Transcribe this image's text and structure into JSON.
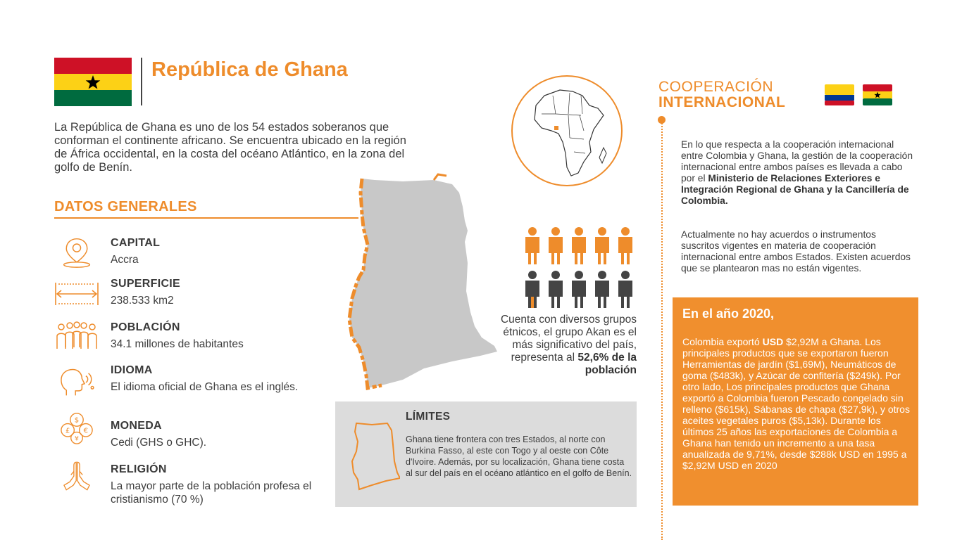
{
  "header": {
    "title": "República de Ghana",
    "intro": "La República de Ghana es uno de los 54 estados soberanos que conforman el continente africano. Se encuentra ubicado en la región de África occidental, en la costa del océano Atlántico, en la zona del golfo de Benín."
  },
  "datos": {
    "title": "DATOS GENERALES",
    "items": [
      {
        "icon": "location-pin-icon",
        "label": "CAPITAL",
        "value": "Accra"
      },
      {
        "icon": "ruler-icon",
        "label": "SUPERFICIE",
        "value": "238.533 km2"
      },
      {
        "icon": "people-group-icon",
        "label": "POBLACIÓN",
        "value": "34.1 millones de habitantes"
      },
      {
        "icon": "speaking-head-icon",
        "label": "IDIOMA",
        "value": "El idioma oficial de Ghana es el inglés."
      },
      {
        "icon": "currency-coins-icon",
        "label": "MONEDA",
        "value": "Cedi (GHS o GHC)."
      },
      {
        "icon": "praying-hands-icon",
        "label": "RELIGIÓN",
        "value": "La mayor parte de la población profesa el cristianismo (70 %)"
      }
    ]
  },
  "ethnic": {
    "text": "Cuenta con diversos grupos étnicos, el grupo Akan es el más significativo del país, representa al",
    "highlight": "52,6% de la población"
  },
  "limits": {
    "title": "LÍMITES",
    "text": "Ghana tiene frontera con tres Estados, al norte con Burkina Fasso, al este con Togo y al oeste con Côte d'Ivoire. Además, por su localización, Ghana tiene costa al sur del país en el océano atlántico en el golfo de Benín."
  },
  "cooperation": {
    "title_line1": "COOPERACIÓN",
    "title_line2": "INTERNACIONAL",
    "p1_start": "En lo que respecta a la cooperación internacional entre Colombia y Ghana, la gestión de la cooperación internacional entre ambos países es llevada a cabo por el",
    "p1_bold": "Ministerio de Relaciones Exteriores e Integración Regional de Ghana y la Cancillería de Colombia.",
    "p2": "Actualmente no hay acuerdos o instrumentos suscritos vigentes en materia de cooperación internacional entre ambos Estados. Existen acuerdos que se plantearon mas no están vigentes."
  },
  "year_box": {
    "title": "En el año 2020,",
    "text_before": "Colombia exportó",
    "text_bold": "USD",
    "text_after": "$2,92M a Ghana. Los principales productos que se exportaron fueron Herramientas de jardín ($1,69M), Neumáticos de goma ($483k), y Azúcar de confitería ($249k). Por otro lado, Los principales productos que Ghana exportó a Colombia fueron Pescado congelado sin relleno ($615k), Sábanas de chapa ($27,9k), y otros aceites vegetales puros ($5,13k). Durante los últimos 25 años las exportaciones de Colombia a Ghana han tenido un incremento a una tasa anualizada de 9,71%, desde $288k USD en 1995 a $2,92M USD en 2020"
  },
  "colors": {
    "accent": "#ee8c2b",
    "box": "#f08f2e",
    "limits_bg": "#dcdcdc",
    "ghana_red": "#ce1126",
    "ghana_gold": "#fcd116",
    "ghana_green": "#006b3f"
  }
}
